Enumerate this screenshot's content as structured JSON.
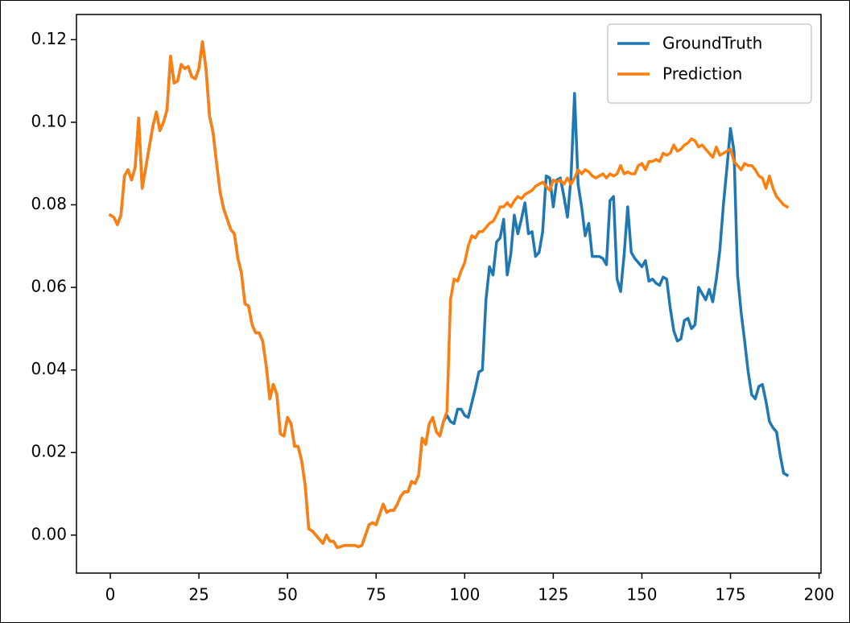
{
  "chart_data": {
    "type": "line",
    "x": [
      0,
      1,
      2,
      3,
      4,
      5,
      6,
      7,
      8,
      9,
      10,
      11,
      12,
      13,
      14,
      15,
      16,
      17,
      18,
      19,
      20,
      21,
      22,
      23,
      24,
      25,
      26,
      27,
      28,
      29,
      30,
      31,
      32,
      33,
      34,
      35,
      36,
      37,
      38,
      39,
      40,
      41,
      42,
      43,
      44,
      45,
      46,
      47,
      48,
      49,
      50,
      51,
      52,
      53,
      54,
      55,
      56,
      57,
      58,
      59,
      60,
      61,
      62,
      63,
      64,
      65,
      66,
      67,
      68,
      69,
      70,
      71,
      72,
      73,
      74,
      75,
      76,
      77,
      78,
      79,
      80,
      81,
      82,
      83,
      84,
      85,
      86,
      87,
      88,
      89,
      90,
      91,
      92,
      93,
      94,
      95,
      96,
      97,
      98,
      99,
      100,
      101,
      102,
      103,
      104,
      105,
      106,
      107,
      108,
      109,
      110,
      111,
      112,
      113,
      114,
      115,
      116,
      117,
      118,
      119,
      120,
      121,
      122,
      123,
      124,
      125,
      126,
      127,
      128,
      129,
      130,
      131,
      132,
      133,
      134,
      135,
      136,
      137,
      138,
      139,
      140,
      141,
      142,
      143,
      144,
      145,
      146,
      147,
      148,
      149,
      150,
      151,
      152,
      153,
      154,
      155,
      156,
      157,
      158,
      159,
      160,
      161,
      162,
      163,
      164,
      165,
      166,
      167,
      168,
      169,
      170,
      171,
      172,
      173,
      174,
      175,
      176,
      177,
      178,
      179,
      180,
      181,
      182,
      183,
      184,
      185,
      186,
      187,
      188,
      189,
      190,
      191
    ],
    "series": [
      {
        "name": "GroundTruth",
        "color": "#1f77b4",
        "values": [
          0.0775,
          0.077,
          0.0752,
          0.0775,
          0.087,
          0.0885,
          0.086,
          0.089,
          0.101,
          0.084,
          0.089,
          0.094,
          0.099,
          0.1025,
          0.098,
          0.1,
          0.103,
          0.116,
          0.1095,
          0.11,
          0.114,
          0.113,
          0.1135,
          0.111,
          0.1105,
          0.113,
          0.1195,
          0.113,
          0.1015,
          0.0975,
          0.09,
          0.083,
          0.079,
          0.0765,
          0.074,
          0.073,
          0.067,
          0.0635,
          0.056,
          0.0555,
          0.051,
          0.049,
          0.049,
          0.047,
          0.041,
          0.033,
          0.0365,
          0.034,
          0.0245,
          0.024,
          0.0285,
          0.027,
          0.0215,
          0.0215,
          0.018,
          0.012,
          0.0015,
          0.001,
          0.0,
          -0.001,
          -0.002,
          0.0,
          -0.0015,
          -0.0015,
          -0.003,
          -0.0028,
          -0.0025,
          -0.0025,
          -0.0025,
          -0.0025,
          -0.0028,
          -0.0025,
          0.0,
          0.0025,
          0.003,
          0.0025,
          0.005,
          0.0075,
          0.0055,
          0.006,
          0.006,
          0.0075,
          0.0095,
          0.0105,
          0.0105,
          0.013,
          0.0125,
          0.0145,
          0.0235,
          0.022,
          0.027,
          0.0285,
          0.025,
          0.024,
          0.0275,
          0.029,
          0.0275,
          0.027,
          0.0305,
          0.0305,
          0.029,
          0.0285,
          0.032,
          0.0355,
          0.0395,
          0.04,
          0.057,
          0.065,
          0.063,
          0.071,
          0.072,
          0.0765,
          0.063,
          0.068,
          0.0775,
          0.073,
          0.0765,
          0.0805,
          0.073,
          0.0735,
          0.0675,
          0.0685,
          0.0735,
          0.087,
          0.0865,
          0.0795,
          0.086,
          0.0865,
          0.082,
          0.077,
          0.0865,
          0.107,
          0.085,
          0.0795,
          0.0725,
          0.0755,
          0.0675,
          0.0675,
          0.0675,
          0.067,
          0.0655,
          0.081,
          0.082,
          0.062,
          0.059,
          0.068,
          0.0795,
          0.0685,
          0.067,
          0.066,
          0.065,
          0.0665,
          0.0615,
          0.062,
          0.061,
          0.0605,
          0.0625,
          0.062,
          0.055,
          0.0495,
          0.047,
          0.0475,
          0.052,
          0.0525,
          0.05,
          0.051,
          0.06,
          0.0585,
          0.057,
          0.0595,
          0.0565,
          0.062,
          0.069,
          0.08,
          0.089,
          0.0985,
          0.093,
          0.063,
          0.054,
          0.047,
          0.0395,
          0.034,
          0.033,
          0.036,
          0.0365,
          0.0325,
          0.0275,
          0.026,
          0.025,
          0.0195,
          0.015,
          0.0145
        ]
      },
      {
        "name": "Prediction",
        "color": "#ff7f0e",
        "values": [
          0.0775,
          0.077,
          0.0752,
          0.0775,
          0.087,
          0.0885,
          0.086,
          0.089,
          0.101,
          0.084,
          0.089,
          0.094,
          0.099,
          0.1025,
          0.098,
          0.1,
          0.103,
          0.116,
          0.1095,
          0.11,
          0.114,
          0.113,
          0.1135,
          0.111,
          0.1105,
          0.113,
          0.1195,
          0.113,
          0.1015,
          0.0975,
          0.09,
          0.083,
          0.079,
          0.0765,
          0.074,
          0.073,
          0.067,
          0.0635,
          0.056,
          0.0555,
          0.051,
          0.049,
          0.049,
          0.047,
          0.041,
          0.033,
          0.0365,
          0.034,
          0.0245,
          0.024,
          0.0285,
          0.027,
          0.0215,
          0.0215,
          0.018,
          0.012,
          0.0015,
          0.001,
          0.0,
          -0.001,
          -0.002,
          0.0,
          -0.0015,
          -0.0015,
          -0.003,
          -0.0028,
          -0.0025,
          -0.0025,
          -0.0025,
          -0.0025,
          -0.0028,
          -0.0025,
          0.0,
          0.0025,
          0.003,
          0.0025,
          0.005,
          0.0075,
          0.0055,
          0.006,
          0.006,
          0.0075,
          0.0095,
          0.0105,
          0.0105,
          0.013,
          0.0125,
          0.0145,
          0.0235,
          0.022,
          0.027,
          0.0285,
          0.025,
          0.024,
          0.0275,
          0.03,
          0.057,
          0.062,
          0.0615,
          0.064,
          0.066,
          0.07,
          0.0725,
          0.072,
          0.0735,
          0.0735,
          0.0745,
          0.0755,
          0.076,
          0.0775,
          0.0795,
          0.0795,
          0.0805,
          0.0795,
          0.081,
          0.082,
          0.0815,
          0.0825,
          0.083,
          0.0835,
          0.0845,
          0.085,
          0.0855,
          0.0845,
          0.0835,
          0.086,
          0.0855,
          0.086,
          0.085,
          0.0865,
          0.085,
          0.0865,
          0.0885,
          0.0875,
          0.0885,
          0.088,
          0.087,
          0.0865,
          0.087,
          0.0875,
          0.0865,
          0.0875,
          0.087,
          0.0875,
          0.0895,
          0.0875,
          0.088,
          0.0875,
          0.0875,
          0.0895,
          0.09,
          0.0885,
          0.0905,
          0.0905,
          0.091,
          0.0905,
          0.0925,
          0.092,
          0.0925,
          0.0945,
          0.093,
          0.0935,
          0.0945,
          0.095,
          0.096,
          0.0955,
          0.094,
          0.0945,
          0.0935,
          0.0925,
          0.0915,
          0.094,
          0.092,
          0.0925,
          0.093,
          0.0935,
          0.0905,
          0.0895,
          0.0885,
          0.09,
          0.0895,
          0.0895,
          0.0885,
          0.087,
          0.0865,
          0.084,
          0.087,
          0.084,
          0.082,
          0.081,
          0.08,
          0.0795
        ]
      }
    ],
    "xlim": [
      -9.55,
      200.55
    ],
    "xticks": [
      0,
      25,
      50,
      75,
      100,
      125,
      150,
      175,
      200
    ],
    "ylim": [
      -0.0092,
      0.1261
    ],
    "yticks": [
      {
        "value": 0,
        "label": "0.00"
      },
      0.02,
      0.04,
      0.06,
      0.08,
      {
        "value": 0.1,
        "label": "0.10"
      },
      0.12
    ],
    "legend": "upper right",
    "grid": false
  }
}
